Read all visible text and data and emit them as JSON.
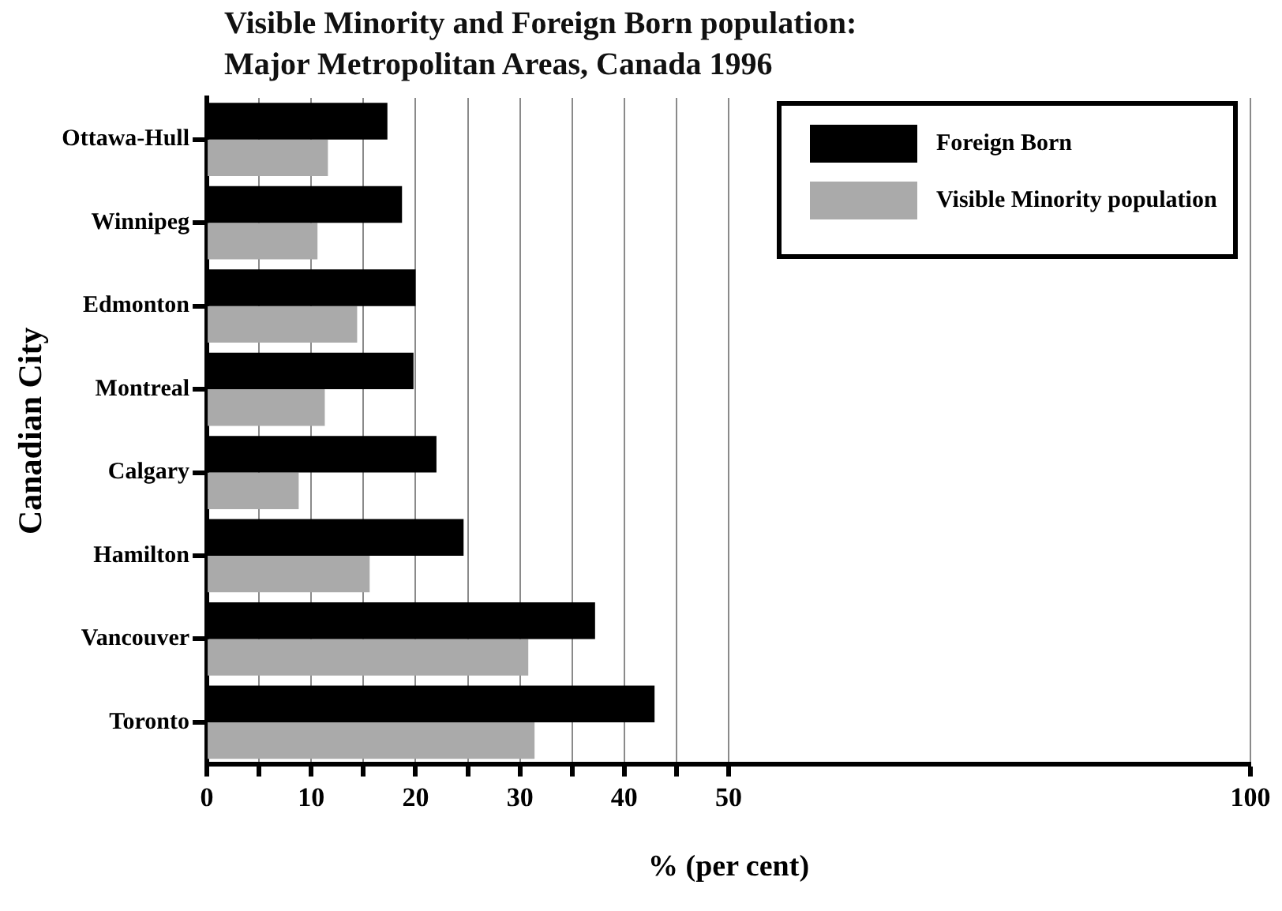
{
  "chart_data": {
    "type": "bar",
    "orientation": "horizontal",
    "title": "Visible Minority and Foreign Born population:\nMajor Metropolitan Areas, Canada 1996",
    "xlabel": "% (per cent)",
    "ylabel": "Canadian City",
    "categories": [
      "Ottawa-Hull",
      "Winnipeg",
      "Edmonton",
      "Montreal",
      "Calgary",
      "Hamilton",
      "Vancouver",
      "Toronto"
    ],
    "series": [
      {
        "name": "Foreign Born",
        "color": "#000000",
        "values": [
          17.3,
          18.7,
          20,
          19.8,
          22,
          24.6,
          37.2,
          42.9
        ]
      },
      {
        "name": "Visible Minority population",
        "color": "#aaaaaa",
        "values": [
          11.6,
          10.6,
          14.4,
          11.3,
          8.8,
          15.6,
          30.8,
          31.4
        ]
      }
    ],
    "xlim": [
      0,
      100
    ],
    "xticks": [
      0,
      {
        "value": 5,
        "label": null
      },
      10,
      {
        "value": 15,
        "label": null
      },
      20,
      {
        "value": 25,
        "label": null
      },
      30,
      {
        "value": 35,
        "label": null
      },
      40,
      {
        "value": 45,
        "label": null
      },
      50,
      100
    ],
    "grid": "x",
    "legend": "top right"
  }
}
